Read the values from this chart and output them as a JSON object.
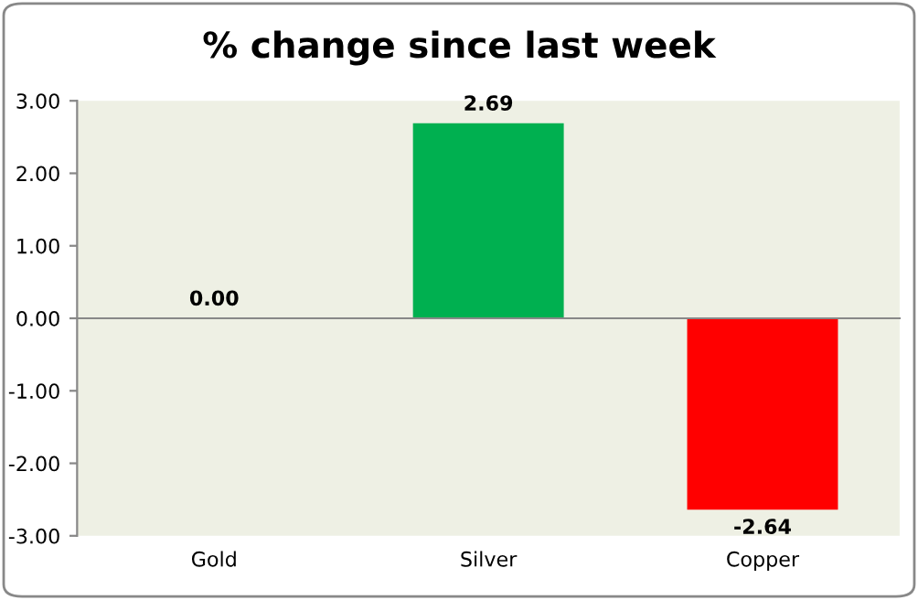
{
  "chart_data": {
    "type": "bar",
    "title": "% change since last week",
    "categories": [
      "Gold",
      "Silver",
      "Copper"
    ],
    "values": [
      0,
      2.69,
      -2.64
    ],
    "colors": [
      null,
      "#00b050",
      "#ff0000"
    ],
    "value_labels": [
      "0.00",
      "2.69",
      "-2.64"
    ],
    "ylim": [
      -3,
      3
    ],
    "yticks": [
      {
        "value": 3,
        "label": "3.00"
      },
      {
        "value": 2,
        "label": "2.00"
      },
      {
        "value": 1,
        "label": "1.00"
      },
      {
        "value": 0,
        "label": "0.00"
      },
      {
        "value": -1,
        "label": "-1.00"
      },
      {
        "value": -2,
        "label": "-2.00"
      },
      {
        "value": -3,
        "label": "-3.00"
      }
    ],
    "legend": false
  }
}
